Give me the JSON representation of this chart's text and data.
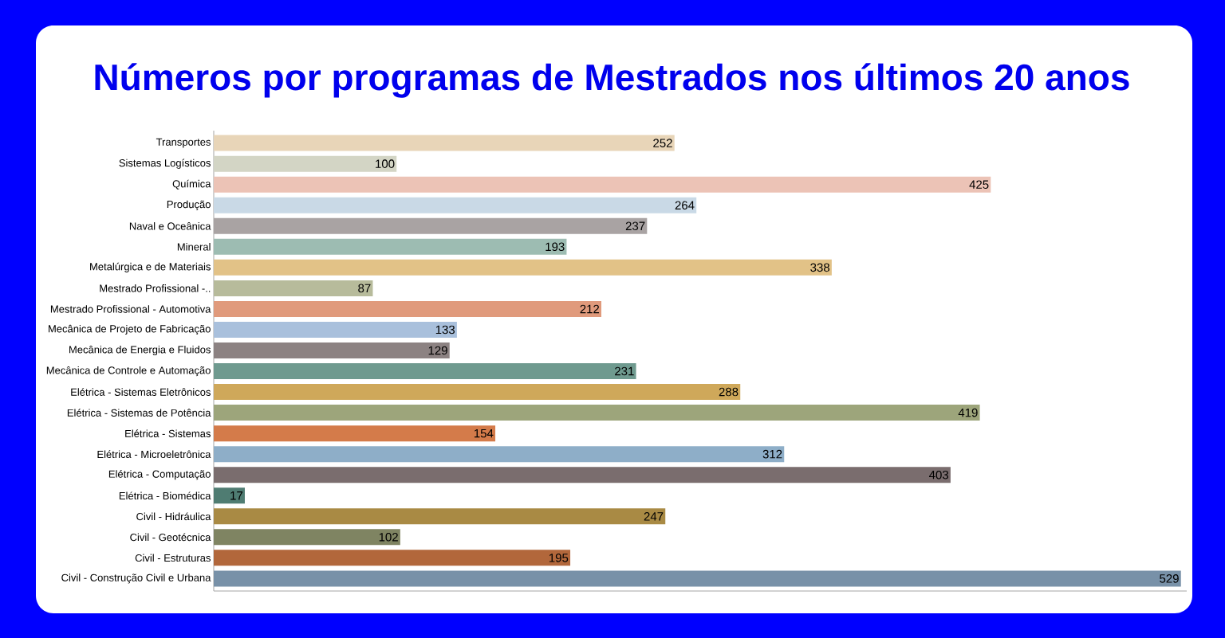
{
  "chart_data": {
    "type": "bar",
    "orientation": "horizontal",
    "data_labels": true,
    "title": "Números por programas de Mestrados nos últimos 20 anos",
    "categories": [
      "Transportes",
      "Sistemas Logísticos",
      "Química",
      "Produção",
      "Naval e Oceânica",
      "Mineral",
      "Metalúrgica e de Materiais",
      "Mestrado Profissional -..",
      "Mestrado Profissional - Automotiva",
      "Mecânica de Projeto de Fabricação",
      "Mecânica de Energia e Fluidos",
      "Mecânica de Controle e Automação",
      "Elétrica - Sistemas Eletrônicos",
      "Elétrica - Sistemas de Potência",
      "Elétrica - Sistemas",
      "Elétrica - Microeletrônica",
      "Elétrica - Computação",
      "Elétrica - Biomédica",
      "Civil - Hidráulica",
      "Civil - Geotécnica",
      "Civil - Estruturas",
      "Civil - Construção Civil e Urbana"
    ],
    "values": [
      252,
      100,
      425,
      264,
      237,
      193,
      338,
      87,
      212,
      133,
      129,
      231,
      288,
      419,
      154,
      312,
      403,
      17,
      247,
      102,
      195,
      529
    ],
    "colors": [
      "#e8d5b8",
      "#d3d5c5",
      "#ecc3b6",
      "#c9d9e6",
      "#a9a3a3",
      "#9dbcb2",
      "#e2c287",
      "#b7bb9b",
      "#e09a7c",
      "#a9c0dc",
      "#8c8282",
      "#6f9a8f",
      "#cfa85a",
      "#9da57b",
      "#d47b4a",
      "#8eaec8",
      "#7a6d6e",
      "#4f7c72",
      "#a98a44",
      "#7f8462",
      "#b2673b",
      "#7891a8"
    ]
  }
}
